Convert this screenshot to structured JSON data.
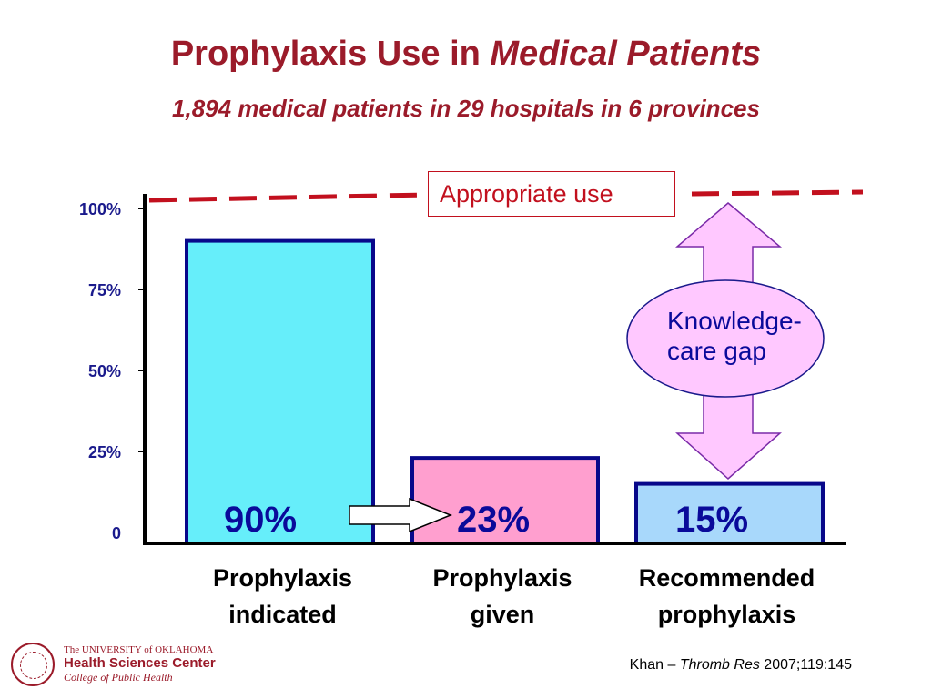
{
  "slide": {
    "title_main": "Prophylaxis Use in ",
    "title_em": "Medical Patients",
    "subtitle": "1,894 medical patients in 29 hospitals in 6 provinces",
    "source_prefix": "Khan – ",
    "source_journal": "Thromb Res",
    "source_suffix": " 2007;119:145",
    "logo": {
      "line1": "The UNIVERSITY of OKLAHOMA",
      "line2": "Health Sciences Center",
      "line3": "College of Public Health"
    }
  },
  "chart_data": {
    "type": "bar",
    "categories": [
      [
        "Prophylaxis",
        "indicated"
      ],
      [
        "Prophylaxis",
        "given"
      ],
      [
        "Recommended",
        "prophylaxis"
      ]
    ],
    "values": [
      90,
      23,
      15
    ],
    "value_labels": [
      "90%",
      "23%",
      "15%"
    ],
    "bar_colors": [
      "#66eefa",
      "#ff9fcf",
      "#a8d8fb"
    ],
    "bar_border_color": "#08088a",
    "y_ticks": [
      {
        "value": 0,
        "label": "0"
      },
      {
        "value": 25,
        "label": "25%"
      },
      {
        "value": 50,
        "label": "50%"
      },
      {
        "value": 75,
        "label": "75%"
      },
      {
        "value": 100,
        "label": "100%"
      }
    ],
    "ylim": [
      0,
      100
    ],
    "reference_line": {
      "value": 100,
      "label": "Appropriate use",
      "color": "#c2101e",
      "style": "dashed"
    },
    "gap_annotation": {
      "label_line1": "Knowledge-",
      "label_line2": "care gap",
      "from": 15,
      "to": 100,
      "fill": "#ffc8ff"
    },
    "arrow_between": {
      "from_category": 0,
      "to_category": 1
    },
    "grid": false
  }
}
